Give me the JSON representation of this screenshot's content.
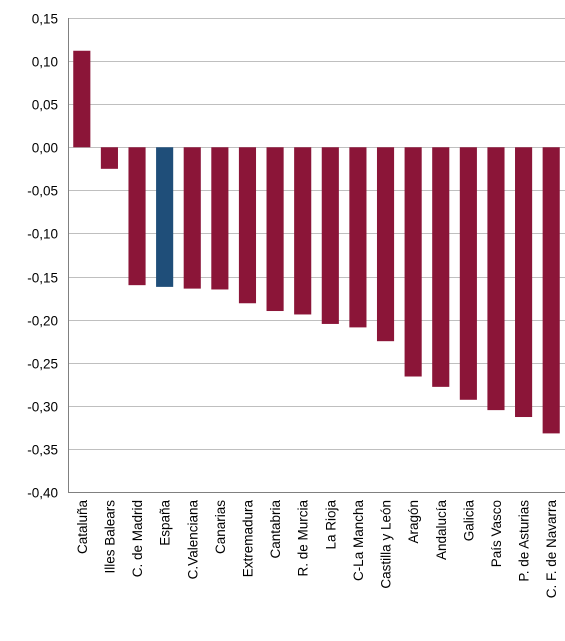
{
  "chart_data": {
    "type": "bar",
    "title": "",
    "xlabel": "",
    "ylabel": "",
    "ylim": [
      -0.4,
      0.15
    ],
    "ytick_step": 0.05,
    "yticks": [
      "0,15",
      "0,10",
      "0,05",
      "0,00",
      "-0,05",
      "-0,10",
      "-0,15",
      "-0,20",
      "-0,25",
      "-0,30",
      "-0,35",
      "-0,40"
    ],
    "grid": true,
    "legend": "none",
    "colors": {
      "default": "#8b1538",
      "highlight": "#1f4e79"
    },
    "highlight_category": "España",
    "categories": [
      "Cataluña",
      "Illes Balears",
      "C. de Madrid",
      "España",
      "C.Valenciana",
      "Canarias",
      "Extremadura",
      "Cantabria",
      "R. de Murcia",
      "La Rioja",
      "C-La Mancha",
      "Castilla y León",
      "Aragón",
      "Andalucía",
      "Galicia",
      "País Vasco",
      "P. de Asturias",
      "C. F. de Navarra"
    ],
    "values": [
      0.112,
      -0.025,
      -0.16,
      -0.162,
      -0.164,
      -0.165,
      -0.181,
      -0.19,
      -0.194,
      -0.205,
      -0.209,
      -0.225,
      -0.266,
      -0.278,
      -0.293,
      -0.305,
      -0.313,
      -0.332
    ]
  }
}
